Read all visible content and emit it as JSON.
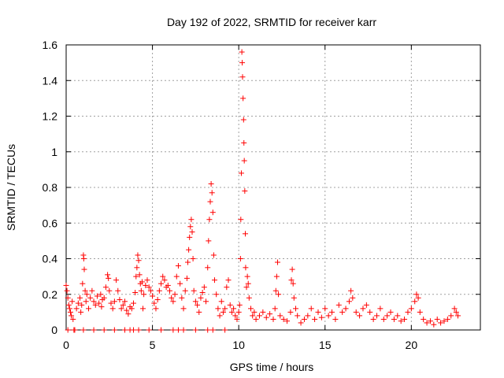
{
  "chart_data": {
    "type": "scatter",
    "title": "Day 192 of 2022, SRMTID for receiver karr",
    "xlabel": "GPS time / hours",
    "ylabel": "SRMTID / TECUs",
    "xlim": [
      0,
      24
    ],
    "ylim": [
      0,
      1.6
    ],
    "xticks": [
      0,
      5,
      10,
      15,
      20
    ],
    "xtick_labels": [
      "0",
      "5",
      "10",
      "15",
      "20"
    ],
    "yticks": [
      0,
      0.2,
      0.4,
      0.6,
      0.8,
      1.0,
      1.2,
      1.4,
      1.6
    ],
    "ytick_labels": [
      "0",
      "0.2",
      "0.4",
      "0.6",
      "0.8",
      "1",
      "1.2",
      "1.4",
      "1.6"
    ],
    "grid": true,
    "marker": "+",
    "color": "#ff0000",
    "series": [
      {
        "name": "SRMTID",
        "points": [
          [
            0.0,
            0.25
          ],
          [
            0.05,
            0.22
          ],
          [
            0.1,
            0.18
          ],
          [
            0.15,
            0.14
          ],
          [
            0.2,
            0.12
          ],
          [
            0.25,
            0.1
          ],
          [
            0.3,
            0.08
          ],
          [
            0.35,
            0.16
          ],
          [
            0.4,
            0.06
          ],
          [
            0.5,
            0.0
          ],
          [
            0.1,
            0.0
          ],
          [
            0.45,
            0.0
          ],
          [
            0.6,
            0.12
          ],
          [
            0.7,
            0.15
          ],
          [
            0.8,
            0.18
          ],
          [
            0.85,
            0.1
          ],
          [
            0.9,
            0.14
          ],
          [
            0.95,
            0.26
          ],
          [
            1.0,
            0.42
          ],
          [
            1.02,
            0.4
          ],
          [
            1.05,
            0.34
          ],
          [
            1.1,
            0.22
          ],
          [
            1.15,
            0.16
          ],
          [
            1.2,
            0.2
          ],
          [
            1.3,
            0.12
          ],
          [
            1.4,
            0.18
          ],
          [
            1.5,
            0.22
          ],
          [
            1.6,
            0.16
          ],
          [
            1.7,
            0.14
          ],
          [
            1.8,
            0.19
          ],
          [
            1.9,
            0.15
          ],
          [
            2.0,
            0.2
          ],
          [
            2.05,
            0.13
          ],
          [
            2.1,
            0.17
          ],
          [
            1.0,
            0.0
          ],
          [
            1.6,
            0.0
          ],
          [
            2.2,
            0.0
          ],
          [
            2.2,
            0.18
          ],
          [
            2.3,
            0.24
          ],
          [
            2.4,
            0.31
          ],
          [
            2.45,
            0.29
          ],
          [
            2.5,
            0.22
          ],
          [
            2.6,
            0.15
          ],
          [
            2.7,
            0.12
          ],
          [
            2.8,
            0.16
          ],
          [
            2.9,
            0.28
          ],
          [
            3.0,
            0.22
          ],
          [
            3.1,
            0.17
          ],
          [
            3.2,
            0.12
          ],
          [
            3.3,
            0.14
          ],
          [
            3.4,
            0.16
          ],
          [
            3.5,
            0.11
          ],
          [
            3.6,
            0.09
          ],
          [
            3.7,
            0.13
          ],
          [
            3.8,
            0.12
          ],
          [
            3.9,
            0.15
          ],
          [
            2.8,
            0.0
          ],
          [
            3.4,
            0.0
          ],
          [
            3.7,
            0.0
          ],
          [
            3.9,
            0.0
          ],
          [
            4.0,
            0.21
          ],
          [
            4.05,
            0.3
          ],
          [
            4.1,
            0.35
          ],
          [
            4.15,
            0.42
          ],
          [
            4.2,
            0.39
          ],
          [
            4.25,
            0.31
          ],
          [
            4.3,
            0.26
          ],
          [
            4.35,
            0.22
          ],
          [
            4.4,
            0.27
          ],
          [
            4.45,
            0.12
          ],
          [
            4.5,
            0.2
          ],
          [
            4.6,
            0.25
          ],
          [
            4.7,
            0.28
          ],
          [
            4.8,
            0.24
          ],
          [
            4.9,
            0.22
          ],
          [
            5.0,
            0.19
          ],
          [
            5.1,
            0.15
          ],
          [
            5.2,
            0.12
          ],
          [
            5.3,
            0.17
          ],
          [
            5.4,
            0.22
          ],
          [
            5.5,
            0.26
          ],
          [
            5.6,
            0.3
          ],
          [
            5.7,
            0.28
          ],
          [
            5.8,
            0.24
          ],
          [
            5.9,
            0.25
          ],
          [
            6.0,
            0.22
          ],
          [
            6.1,
            0.18
          ],
          [
            6.2,
            0.16
          ],
          [
            6.3,
            0.2
          ],
          [
            6.4,
            0.3
          ],
          [
            6.5,
            0.36
          ],
          [
            6.6,
            0.26
          ],
          [
            6.7,
            0.18
          ],
          [
            6.8,
            0.12
          ],
          [
            6.9,
            0.22
          ],
          [
            7.0,
            0.29
          ],
          [
            7.05,
            0.38
          ],
          [
            7.1,
            0.45
          ],
          [
            7.15,
            0.52
          ],
          [
            7.2,
            0.58
          ],
          [
            7.25,
            0.62
          ],
          [
            7.3,
            0.55
          ],
          [
            7.35,
            0.4
          ],
          [
            7.4,
            0.22
          ],
          [
            7.5,
            0.16
          ],
          [
            7.6,
            0.14
          ],
          [
            7.7,
            0.1
          ],
          [
            4.2,
            0.0
          ],
          [
            4.8,
            0.0
          ],
          [
            5.5,
            0.0
          ],
          [
            6.2,
            0.0
          ],
          [
            6.5,
            0.0
          ],
          [
            6.8,
            0.0
          ],
          [
            7.5,
            0.0
          ],
          [
            7.8,
            0.18
          ],
          [
            7.9,
            0.21
          ],
          [
            8.0,
            0.24
          ],
          [
            8.1,
            0.16
          ],
          [
            8.2,
            0.35
          ],
          [
            8.25,
            0.5
          ],
          [
            8.3,
            0.62
          ],
          [
            8.35,
            0.72
          ],
          [
            8.4,
            0.82
          ],
          [
            8.45,
            0.77
          ],
          [
            8.5,
            0.66
          ],
          [
            8.55,
            0.42
          ],
          [
            8.6,
            0.28
          ],
          [
            8.7,
            0.2
          ],
          [
            8.8,
            0.12
          ],
          [
            8.9,
            0.08
          ],
          [
            9.0,
            0.16
          ],
          [
            9.1,
            0.1
          ],
          [
            9.2,
            0.12
          ],
          [
            9.3,
            0.24
          ],
          [
            9.4,
            0.28
          ],
          [
            9.5,
            0.14
          ],
          [
            9.6,
            0.1
          ],
          [
            9.7,
            0.12
          ],
          [
            9.8,
            0.08
          ],
          [
            9.9,
            0.06
          ],
          [
            8.2,
            0.0
          ],
          [
            8.5,
            0.0
          ],
          [
            9.2,
            0.0
          ],
          [
            10.0,
            0.1
          ],
          [
            10.05,
            0.14
          ],
          [
            10.1,
            0.4
          ],
          [
            10.12,
            0.62
          ],
          [
            10.15,
            0.88
          ],
          [
            10.18,
            1.56
          ],
          [
            10.2,
            1.5
          ],
          [
            10.22,
            1.42
          ],
          [
            10.25,
            1.3
          ],
          [
            10.28,
            1.18
          ],
          [
            10.3,
            1.05
          ],
          [
            10.32,
            0.95
          ],
          [
            10.35,
            0.78
          ],
          [
            10.38,
            0.54
          ],
          [
            10.4,
            0.35
          ],
          [
            10.45,
            0.24
          ],
          [
            10.5,
            0.3
          ],
          [
            10.55,
            0.26
          ],
          [
            10.6,
            0.18
          ],
          [
            10.7,
            0.12
          ],
          [
            10.8,
            0.08
          ],
          [
            10.9,
            0.1
          ],
          [
            11.0,
            0.06
          ],
          [
            11.2,
            0.08
          ],
          [
            11.4,
            0.1
          ],
          [
            11.6,
            0.07
          ],
          [
            11.8,
            0.09
          ],
          [
            12.0,
            0.06
          ],
          [
            12.1,
            0.12
          ],
          [
            12.15,
            0.22
          ],
          [
            12.2,
            0.3
          ],
          [
            12.25,
            0.38
          ],
          [
            12.3,
            0.2
          ],
          [
            12.4,
            0.08
          ],
          [
            12.6,
            0.06
          ],
          [
            12.8,
            0.05
          ],
          [
            13.0,
            0.1
          ],
          [
            13.05,
            0.28
          ],
          [
            13.1,
            0.34
          ],
          [
            13.15,
            0.26
          ],
          [
            13.2,
            0.18
          ],
          [
            13.3,
            0.12
          ],
          [
            13.4,
            0.08
          ],
          [
            13.6,
            0.04
          ],
          [
            13.8,
            0.06
          ],
          [
            14.0,
            0.08
          ],
          [
            14.2,
            0.12
          ],
          [
            14.4,
            0.06
          ],
          [
            14.6,
            0.1
          ],
          [
            14.8,
            0.07
          ],
          [
            15.0,
            0.12
          ],
          [
            15.2,
            0.08
          ],
          [
            15.4,
            0.1
          ],
          [
            15.6,
            0.06
          ],
          [
            15.8,
            0.14
          ],
          [
            16.0,
            0.1
          ],
          [
            16.2,
            0.12
          ],
          [
            16.4,
            0.16
          ],
          [
            16.5,
            0.22
          ],
          [
            16.6,
            0.18
          ],
          [
            16.8,
            0.1
          ],
          [
            17.0,
            0.08
          ],
          [
            17.2,
            0.12
          ],
          [
            17.4,
            0.14
          ],
          [
            17.6,
            0.1
          ],
          [
            17.8,
            0.06
          ],
          [
            18.0,
            0.08
          ],
          [
            18.2,
            0.12
          ],
          [
            18.4,
            0.06
          ],
          [
            18.6,
            0.08
          ],
          [
            18.8,
            0.1
          ],
          [
            19.0,
            0.06
          ],
          [
            19.2,
            0.08
          ],
          [
            19.4,
            0.05
          ],
          [
            19.6,
            0.06
          ],
          [
            19.8,
            0.1
          ],
          [
            20.0,
            0.12
          ],
          [
            20.2,
            0.16
          ],
          [
            20.3,
            0.2
          ],
          [
            20.4,
            0.18
          ],
          [
            20.5,
            0.1
          ],
          [
            20.7,
            0.06
          ],
          [
            20.9,
            0.04
          ],
          [
            21.1,
            0.05
          ],
          [
            21.3,
            0.03
          ],
          [
            21.5,
            0.06
          ],
          [
            21.7,
            0.04
          ],
          [
            21.9,
            0.05
          ],
          [
            22.1,
            0.06
          ],
          [
            22.3,
            0.08
          ],
          [
            22.5,
            0.12
          ],
          [
            22.6,
            0.1
          ],
          [
            22.7,
            0.08
          ]
        ]
      }
    ]
  }
}
